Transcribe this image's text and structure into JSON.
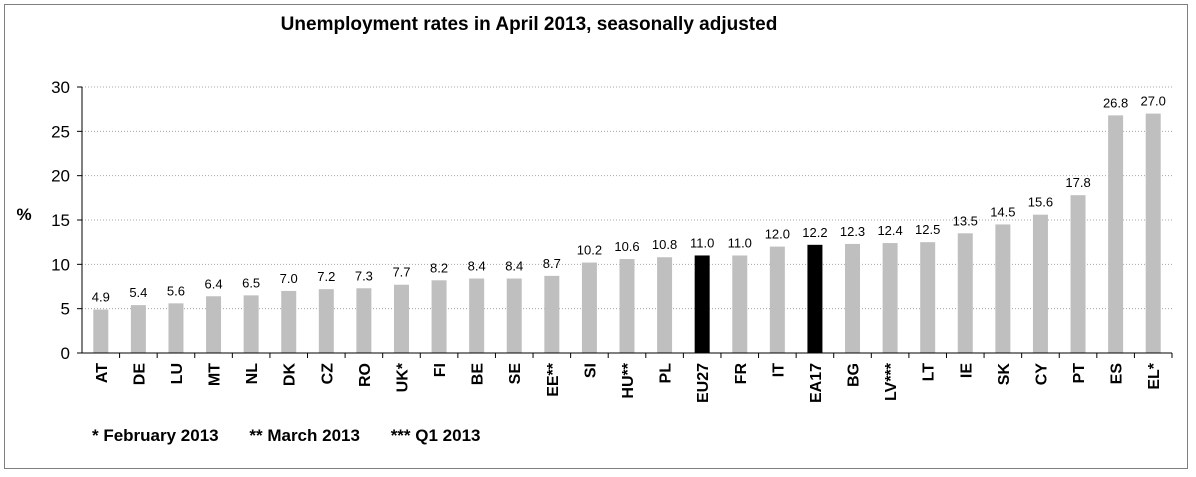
{
  "chart_data": {
    "type": "bar",
    "title": "Unemployment rates in April 2013, seasonally adjusted",
    "ylabel": "%",
    "xlabel": "",
    "ylim": [
      0,
      30
    ],
    "yticks": [
      0,
      5,
      10,
      15,
      20,
      25,
      30
    ],
    "grid": true,
    "legend": "none",
    "categories": [
      "AT",
      "DE",
      "LU",
      "MT",
      "NL",
      "DK",
      "CZ",
      "RO",
      "UK*",
      "FI",
      "BE",
      "SE",
      "EE**",
      "SI",
      "HU**",
      "PL",
      "EU27",
      "FR",
      "IT",
      "EA17",
      "BG",
      "LV***",
      "LT",
      "IE",
      "SK",
      "CY",
      "PT",
      "ES",
      "EL*"
    ],
    "values": [
      4.9,
      5.4,
      5.6,
      6.4,
      6.5,
      7.0,
      7.2,
      7.3,
      7.7,
      8.2,
      8.4,
      8.4,
      8.7,
      10.2,
      10.6,
      10.8,
      11.0,
      11.0,
      12.0,
      12.2,
      12.3,
      12.4,
      12.5,
      13.5,
      14.5,
      15.6,
      17.8,
      26.8,
      27.0
    ],
    "value_labels": [
      "4.9",
      "5.4",
      "5.6",
      "6.4",
      "6.5",
      "7.0",
      "7.2",
      "7.3",
      "7.7",
      "8.2",
      "8.4",
      "8.4",
      "8.7",
      "10.2",
      "10.6",
      "10.8",
      "11.0",
      "11.0",
      "12.0",
      "12.2",
      "12.3",
      "12.4",
      "12.5",
      "13.5",
      "14.5",
      "15.6",
      "17.8",
      "26.8",
      "27.0"
    ],
    "highlight_categories": [
      "EU27",
      "EA17"
    ],
    "colors": {
      "bar": "#bfbfbf",
      "highlight": "#000000",
      "grid": "#a6a6a6",
      "axis": "#000000"
    },
    "footnotes": [
      "* February 2013",
      "** March 2013",
      "*** Q1 2013"
    ]
  }
}
